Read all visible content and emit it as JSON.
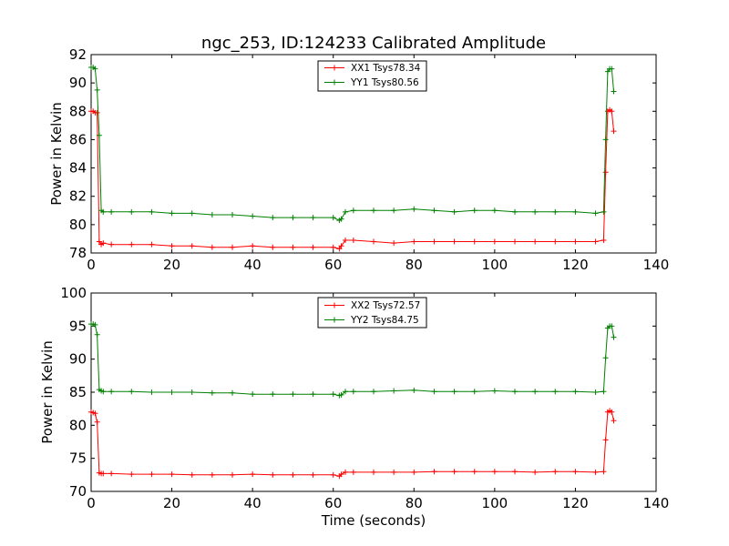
{
  "chart_data": [
    {
      "type": "line",
      "title": "ngc_253, ID:124233 Calibrated Amplitude",
      "xlabel": "",
      "ylabel": "Power in Kelvin",
      "xlim": [
        0,
        140
      ],
      "ylim": [
        78,
        92
      ],
      "x_ticks": [
        0,
        20,
        40,
        60,
        80,
        100,
        120,
        140
      ],
      "y_ticks": [
        78,
        80,
        82,
        84,
        86,
        88,
        90,
        92
      ],
      "grid": false,
      "legend_position": "top-center",
      "x": [
        0,
        0.5,
        1,
        1.5,
        2,
        2.5,
        3,
        5,
        10,
        15,
        20,
        25,
        30,
        35,
        40,
        45,
        50,
        55,
        60,
        61.5,
        62,
        63,
        65,
        70,
        75,
        80,
        85,
        90,
        95,
        100,
        105,
        110,
        115,
        120,
        125,
        127,
        127.5,
        128,
        128.5,
        129,
        129.5
      ],
      "series": [
        {
          "name": "XX1 Tsys78.34",
          "color": "#ff0000",
          "values": [
            88.0,
            88.0,
            87.9,
            87.9,
            78.8,
            78.6,
            78.7,
            78.6,
            78.6,
            78.6,
            78.5,
            78.5,
            78.4,
            78.4,
            78.5,
            78.4,
            78.4,
            78.4,
            78.4,
            78.3,
            78.5,
            78.9,
            78.9,
            78.8,
            78.7,
            78.8,
            78.8,
            78.8,
            78.8,
            78.8,
            78.8,
            78.8,
            78.8,
            78.8,
            78.8,
            78.9,
            83.7,
            88.0,
            88.1,
            88.0,
            86.6
          ]
        },
        {
          "name": "YY1 Tsys80.56",
          "color": "#008000",
          "values": [
            91.1,
            91.1,
            91.0,
            89.5,
            86.3,
            81.0,
            80.9,
            80.9,
            80.9,
            80.9,
            80.8,
            80.8,
            80.7,
            80.7,
            80.6,
            80.5,
            80.5,
            80.5,
            80.5,
            80.3,
            80.4,
            80.9,
            81.0,
            81.0,
            81.0,
            81.1,
            81.0,
            80.9,
            81.0,
            81.0,
            80.9,
            80.9,
            80.9,
            80.9,
            80.8,
            80.9,
            86.0,
            90.8,
            91.0,
            91.0,
            89.4
          ]
        }
      ]
    },
    {
      "type": "line",
      "title": "",
      "xlabel": "Time (seconds)",
      "ylabel": "Power in Kelvin",
      "xlim": [
        0,
        140
      ],
      "ylim": [
        70,
        100
      ],
      "x_ticks": [
        0,
        20,
        40,
        60,
        80,
        100,
        120,
        140
      ],
      "y_ticks": [
        70,
        75,
        80,
        85,
        90,
        95,
        100
      ],
      "grid": false,
      "legend_position": "top-center",
      "x": [
        0,
        0.5,
        1,
        1.5,
        2,
        2.5,
        3,
        5,
        10,
        15,
        20,
        25,
        30,
        35,
        40,
        45,
        50,
        55,
        60,
        61.5,
        62,
        63,
        65,
        70,
        75,
        80,
        85,
        90,
        95,
        100,
        105,
        110,
        115,
        120,
        125,
        127,
        127.5,
        128,
        128.5,
        129,
        129.5
      ],
      "series": [
        {
          "name": "XX2 Tsys72.57",
          "color": "#ff0000",
          "values": [
            82.0,
            81.9,
            81.8,
            80.5,
            72.8,
            72.7,
            72.7,
            72.7,
            72.6,
            72.6,
            72.6,
            72.5,
            72.5,
            72.5,
            72.6,
            72.5,
            72.5,
            72.5,
            72.5,
            72.3,
            72.6,
            72.9,
            72.9,
            72.9,
            72.9,
            72.9,
            73.0,
            73.0,
            73.0,
            73.0,
            73.0,
            72.9,
            73.0,
            73.0,
            72.9,
            73.0,
            77.8,
            82.0,
            82.2,
            82.0,
            80.7
          ]
        },
        {
          "name": "YY2 Tsys84.75",
          "color": "#008000",
          "values": [
            95.3,
            95.3,
            95.2,
            93.7,
            85.4,
            85.2,
            85.1,
            85.1,
            85.1,
            85.0,
            85.0,
            85.0,
            84.9,
            84.9,
            84.7,
            84.7,
            84.7,
            84.7,
            84.7,
            84.5,
            84.6,
            85.1,
            85.1,
            85.1,
            85.2,
            85.3,
            85.1,
            85.1,
            85.1,
            85.2,
            85.1,
            85.1,
            85.1,
            85.1,
            85.0,
            85.1,
            90.2,
            94.7,
            95.0,
            95.0,
            93.3
          ]
        }
      ]
    }
  ]
}
